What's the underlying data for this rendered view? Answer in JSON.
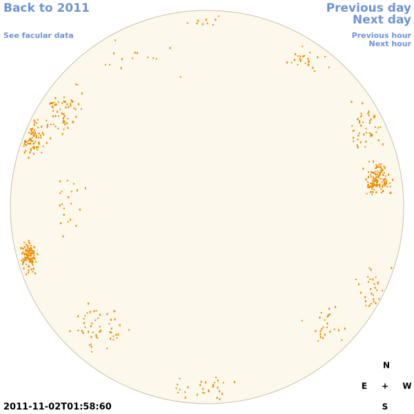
{
  "header": {
    "back_link": "Back to 2011",
    "facular_link": "See facular data",
    "previous_day": "Previous day",
    "next_day": "Next day",
    "previous_hour": "Previous hour",
    "next_hour": "Next hour"
  },
  "timestamp": "2011-11-02T01:58:60",
  "compass": {
    "north": "N",
    "east": "E",
    "center": "+",
    "west": "W",
    "south": "S"
  }
}
